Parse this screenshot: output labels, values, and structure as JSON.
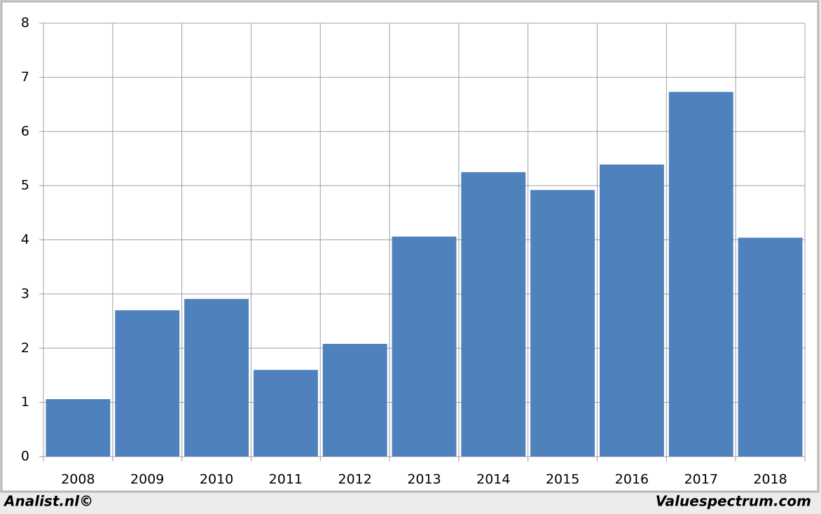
{
  "chart_data": {
    "type": "bar",
    "categories": [
      "2008",
      "2009",
      "2010",
      "2011",
      "2012",
      "2013",
      "2014",
      "2015",
      "2016",
      "2017",
      "2018"
    ],
    "values": [
      1.06,
      2.7,
      2.91,
      1.6,
      2.08,
      4.06,
      5.25,
      4.92,
      5.39,
      6.73,
      4.04
    ],
    "color": "#4f81bd",
    "ylim": [
      0,
      8
    ],
    "yticks": [
      0,
      1,
      2,
      3,
      4,
      5,
      6,
      7,
      8
    ],
    "grid": true
  },
  "footer": {
    "left": "Analist.nl©",
    "right": "Valuespectrum.com"
  }
}
